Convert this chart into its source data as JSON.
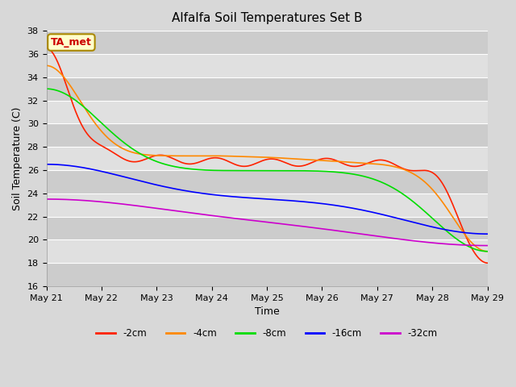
{
  "title": "Alfalfa Soil Temperatures Set B",
  "xlabel": "Time",
  "ylabel": "Soil Temperature (C)",
  "ylim": [
    16,
    38
  ],
  "annotation_text": "TA_met",
  "annotation_color": "#cc0000",
  "annotation_bg": "#ffffcc",
  "annotation_border": "#aa8800",
  "bg_color": "#d8d8d8",
  "plot_bg": "#d8d8d8",
  "series": [
    {
      "label": "-2cm",
      "color": "#ff2200",
      "lw": 1.2
    },
    {
      "label": "-4cm",
      "color": "#ff8800",
      "lw": 1.2
    },
    {
      "label": "-8cm",
      "color": "#00dd00",
      "lw": 1.2
    },
    {
      "label": "-16cm",
      "color": "#0000ff",
      "lw": 1.2
    },
    {
      "label": "-32cm",
      "color": "#cc00cc",
      "lw": 1.2
    }
  ],
  "tick_dates": [
    "May 21",
    "May 22",
    "May 23",
    "May 24",
    "May 25",
    "May 26",
    "May 27",
    "May 28",
    "May 29"
  ],
  "tick_positions": [
    0,
    1,
    2,
    3,
    4,
    5,
    6,
    7,
    8
  ],
  "yticks": [
    16,
    18,
    20,
    22,
    24,
    26,
    28,
    30,
    32,
    34,
    36,
    38
  ]
}
